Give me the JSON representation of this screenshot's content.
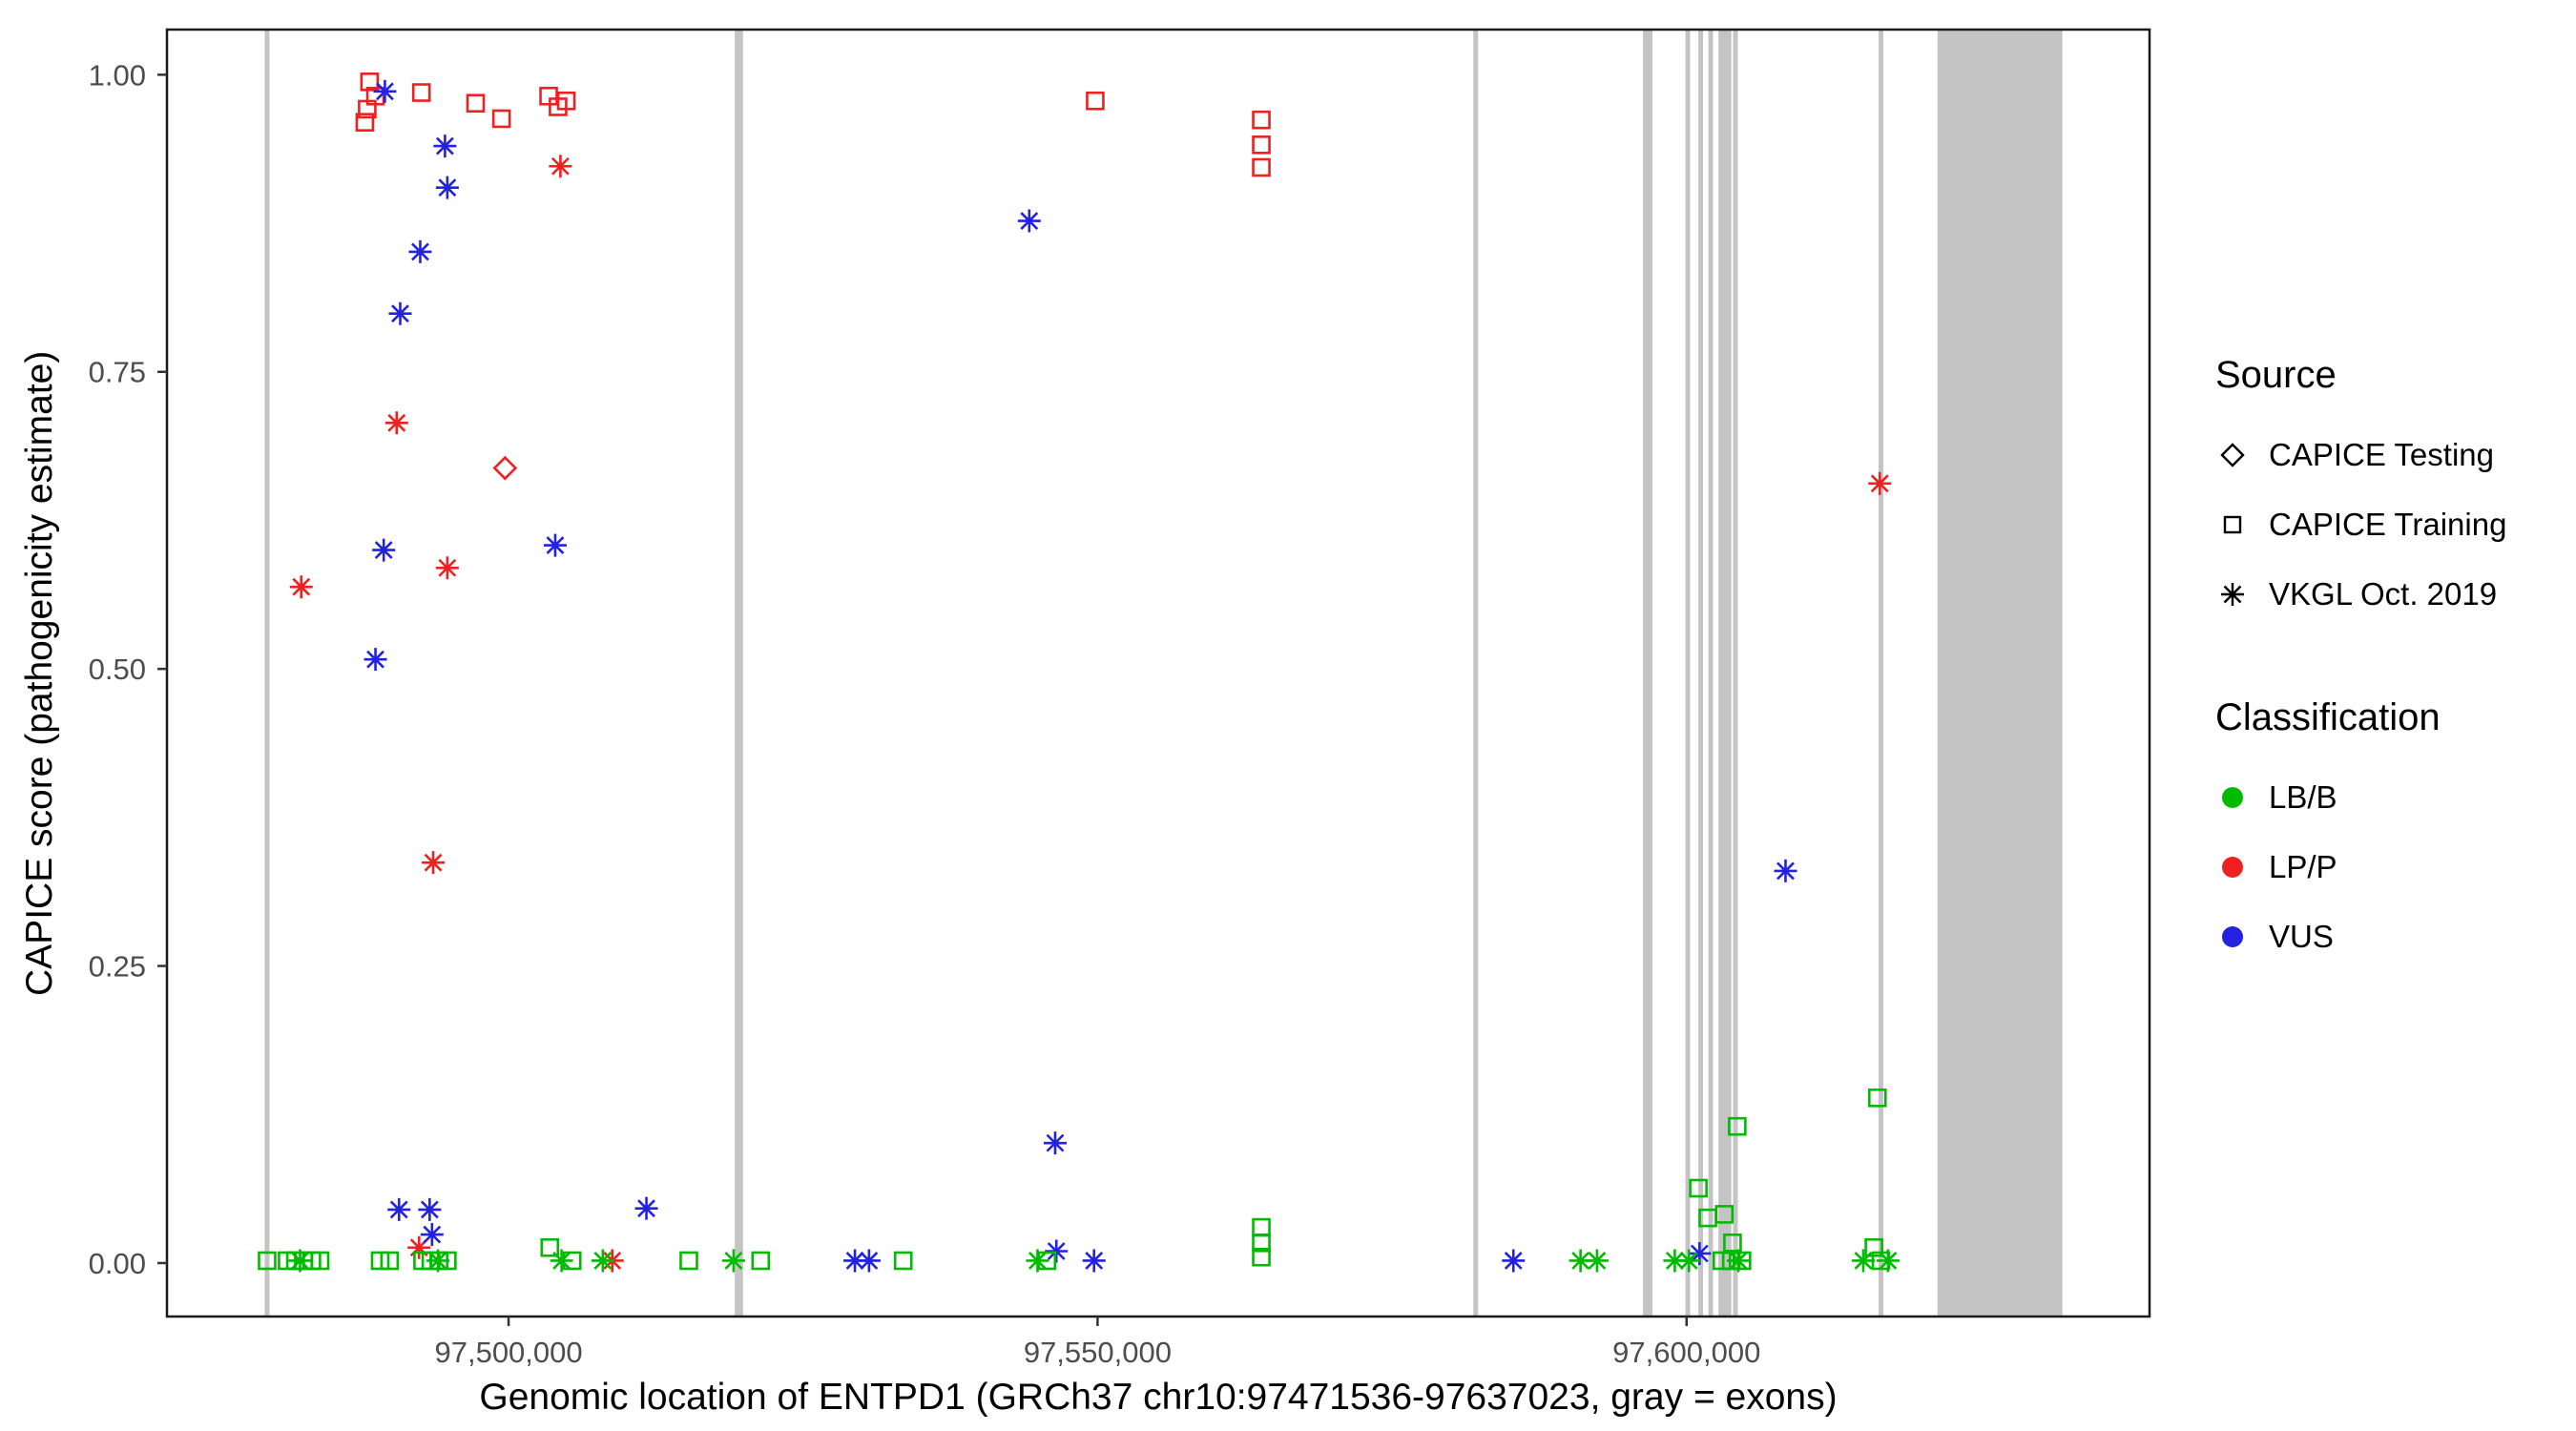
{
  "axes": {
    "x_title": "Genomic location of ENTPD1 (GRCh37 chr10:97471536-97637023, gray = exons)",
    "y_title": "CAPICE score (pathogenicity estimate)",
    "x_ticks": [
      {
        "value": 97500000,
        "label": "97,500,000"
      },
      {
        "value": 97550000,
        "label": "97,550,000"
      },
      {
        "value": 97600000,
        "label": "97,600,000"
      }
    ],
    "y_ticks": [
      {
        "value": 0.0,
        "label": "0.00"
      },
      {
        "value": 0.25,
        "label": "0.25"
      },
      {
        "value": 0.5,
        "label": "0.50"
      },
      {
        "value": 0.75,
        "label": "0.75"
      },
      {
        "value": 1.0,
        "label": "1.00"
      }
    ]
  },
  "legend": {
    "source": {
      "title": "Source",
      "items": [
        {
          "label": "CAPICE Testing",
          "shape": "diamond"
        },
        {
          "label": "CAPICE Training",
          "shape": "square"
        },
        {
          "label": "VKGL Oct. 2019",
          "shape": "asterisk"
        }
      ]
    },
    "classification": {
      "title": "Classification",
      "items": [
        {
          "label": "LB/B",
          "color": "#00BB00"
        },
        {
          "label": "LP/P",
          "color": "#EE2020"
        },
        {
          "label": "VUS",
          "color": "#2222E0"
        }
      ]
    }
  },
  "chart_data": {
    "type": "scatter",
    "title": "",
    "xlabel": "Genomic location of ENTPD1 (GRCh37 chr10:97471536-97637023, gray = exons)",
    "ylabel": "CAPICE score (pathogenicity estimate)",
    "xlim": [
      97471000,
      97639300
    ],
    "ylim": [
      -0.045,
      1.038
    ],
    "x_tick_values": [
      97500000,
      97550000,
      97600000
    ],
    "y_tick_values": [
      0.0,
      0.25,
      0.5,
      0.75,
      1.0
    ],
    "grid": false,
    "legend_position": "right",
    "exon_color": "#C4C4C4",
    "class_colors": {
      "LB/B": "#00BB00",
      "LP/P": "#EE2020",
      "VUS": "#2222E0"
    },
    "shape_to_source": {
      "diamond": "CAPICE Testing",
      "square": "CAPICE Training",
      "asterisk": "VKGL Oct. 2019"
    },
    "exons": [
      [
        97479300,
        97479700
      ],
      [
        97519200,
        97519900
      ],
      [
        97581900,
        97582300
      ],
      [
        97596300,
        97597100
      ],
      [
        97599900,
        97600300
      ],
      [
        97601000,
        97601400
      ],
      [
        97601850,
        97602250
      ],
      [
        97602700,
        97603800
      ],
      [
        97603950,
        97604350
      ],
      [
        97616300,
        97616700
      ],
      [
        97621300,
        97631900
      ]
    ],
    "points": [
      [
        97488200,
        0.994,
        "square",
        "LP/P"
      ],
      [
        97488700,
        0.982,
        "square",
        "LP/P"
      ],
      [
        97488000,
        0.971,
        "square",
        "LP/P"
      ],
      [
        97487800,
        0.96,
        "square",
        "LP/P"
      ],
      [
        97492600,
        0.985,
        "square",
        "LP/P"
      ],
      [
        97497200,
        0.976,
        "square",
        "LP/P"
      ],
      [
        97499400,
        0.963,
        "square",
        "LP/P"
      ],
      [
        97503400,
        0.982,
        "square",
        "LP/P"
      ],
      [
        97504200,
        0.973,
        "square",
        "LP/P"
      ],
      [
        97504900,
        0.978,
        "square",
        "LP/P"
      ],
      [
        97549800,
        0.978,
        "square",
        "LP/P"
      ],
      [
        97563900,
        0.962,
        "square",
        "LP/P"
      ],
      [
        97563900,
        0.941,
        "square",
        "LP/P"
      ],
      [
        97563900,
        0.922,
        "square",
        "LP/P"
      ],
      [
        97499700,
        0.669,
        "diamond",
        "LP/P"
      ],
      [
        97504400,
        0.923,
        "asterisk",
        "LP/P"
      ],
      [
        97490500,
        0.707,
        "asterisk",
        "LP/P"
      ],
      [
        97494800,
        0.585,
        "asterisk",
        "LP/P"
      ],
      [
        97482400,
        0.569,
        "asterisk",
        "LP/P"
      ],
      [
        97493600,
        0.337,
        "asterisk",
        "LP/P"
      ],
      [
        97616400,
        0.656,
        "asterisk",
        "LP/P"
      ],
      [
        97492400,
        0.013,
        "asterisk",
        "LP/P"
      ],
      [
        97508800,
        0.002,
        "asterisk",
        "LP/P"
      ],
      [
        97489500,
        0.986,
        "asterisk",
        "VUS"
      ],
      [
        97494600,
        0.94,
        "asterisk",
        "VUS"
      ],
      [
        97494800,
        0.905,
        "asterisk",
        "VUS"
      ],
      [
        97492500,
        0.851,
        "asterisk",
        "VUS"
      ],
      [
        97490800,
        0.799,
        "asterisk",
        "VUS"
      ],
      [
        97489400,
        0.6,
        "asterisk",
        "VUS"
      ],
      [
        97503960,
        0.604,
        "asterisk",
        "VUS"
      ],
      [
        97488700,
        0.508,
        "asterisk",
        "VUS"
      ],
      [
        97544200,
        0.877,
        "asterisk",
        "VUS"
      ],
      [
        97546400,
        0.101,
        "asterisk",
        "VUS"
      ],
      [
        97608400,
        0.33,
        "asterisk",
        "VUS"
      ],
      [
        97490700,
        0.045,
        "asterisk",
        "VUS"
      ],
      [
        97493300,
        0.045,
        "asterisk",
        "VUS"
      ],
      [
        97493500,
        0.024,
        "asterisk",
        "VUS"
      ],
      [
        97511700,
        0.046,
        "asterisk",
        "VUS"
      ],
      [
        97529400,
        0.002,
        "asterisk",
        "VUS"
      ],
      [
        97530600,
        0.002,
        "asterisk",
        "VUS"
      ],
      [
        97546500,
        0.01,
        "asterisk",
        "VUS"
      ],
      [
        97549700,
        0.002,
        "asterisk",
        "VUS"
      ],
      [
        97585300,
        0.002,
        "asterisk",
        "VUS"
      ],
      [
        97601100,
        0.008,
        "asterisk",
        "VUS"
      ],
      [
        97479500,
        0.002,
        "square",
        "LB/B"
      ],
      [
        97481200,
        0.002,
        "square",
        "LB/B"
      ],
      [
        97481900,
        0.002,
        "square",
        "LB/B"
      ],
      [
        97482600,
        0.002,
        "square",
        "LB/B"
      ],
      [
        97483300,
        0.002,
        "square",
        "LB/B"
      ],
      [
        97484000,
        0.002,
        "square",
        "LB/B"
      ],
      [
        97489100,
        0.002,
        "square",
        "LB/B"
      ],
      [
        97489900,
        0.002,
        "square",
        "LB/B"
      ],
      [
        97492700,
        0.002,
        "square",
        "LB/B"
      ],
      [
        97493400,
        0.002,
        "square",
        "LB/B"
      ],
      [
        97494100,
        0.002,
        "square",
        "LB/B"
      ],
      [
        97494800,
        0.002,
        "square",
        "LB/B"
      ],
      [
        97503500,
        0.013,
        "square",
        "LB/B"
      ],
      [
        97505400,
        0.002,
        "square",
        "LB/B"
      ],
      [
        97515300,
        0.002,
        "square",
        "LB/B"
      ],
      [
        97521400,
        0.002,
        "square",
        "LB/B"
      ],
      [
        97533500,
        0.002,
        "square",
        "LB/B"
      ],
      [
        97545700,
        0.002,
        "square",
        "LB/B"
      ],
      [
        97563900,
        0.03,
        "square",
        "LB/B"
      ],
      [
        97563900,
        0.017,
        "square",
        "LB/B"
      ],
      [
        97563900,
        0.005,
        "square",
        "LB/B"
      ],
      [
        97601000,
        0.063,
        "square",
        "LB/B"
      ],
      [
        97601800,
        0.038,
        "square",
        "LB/B"
      ],
      [
        97603200,
        0.041,
        "square",
        "LB/B"
      ],
      [
        97603900,
        0.017,
        "square",
        "LB/B"
      ],
      [
        97603000,
        0.002,
        "square",
        "LB/B"
      ],
      [
        97603800,
        0.002,
        "square",
        "LB/B"
      ],
      [
        97604700,
        0.002,
        "square",
        "LB/B"
      ],
      [
        97604300,
        0.115,
        "square",
        "LB/B"
      ],
      [
        97616200,
        0.139,
        "square",
        "LB/B"
      ],
      [
        97615900,
        0.013,
        "square",
        "LB/B"
      ],
      [
        97616500,
        0.002,
        "square",
        "LB/B"
      ],
      [
        97482300,
        0.002,
        "asterisk",
        "LB/B"
      ],
      [
        97494000,
        0.002,
        "asterisk",
        "LB/B"
      ],
      [
        97504500,
        0.002,
        "asterisk",
        "LB/B"
      ],
      [
        97508000,
        0.002,
        "asterisk",
        "LB/B"
      ],
      [
        97519100,
        0.002,
        "asterisk",
        "LB/B"
      ],
      [
        97544900,
        0.002,
        "asterisk",
        "LB/B"
      ],
      [
        97591000,
        0.002,
        "asterisk",
        "LB/B"
      ],
      [
        97592400,
        0.002,
        "asterisk",
        "LB/B"
      ],
      [
        97599000,
        0.002,
        "asterisk",
        "LB/B"
      ],
      [
        97600200,
        0.002,
        "asterisk",
        "LB/B"
      ],
      [
        97604400,
        0.002,
        "asterisk",
        "LB/B"
      ],
      [
        97615000,
        0.002,
        "asterisk",
        "LB/B"
      ],
      [
        97617100,
        0.002,
        "asterisk",
        "LB/B"
      ]
    ]
  }
}
